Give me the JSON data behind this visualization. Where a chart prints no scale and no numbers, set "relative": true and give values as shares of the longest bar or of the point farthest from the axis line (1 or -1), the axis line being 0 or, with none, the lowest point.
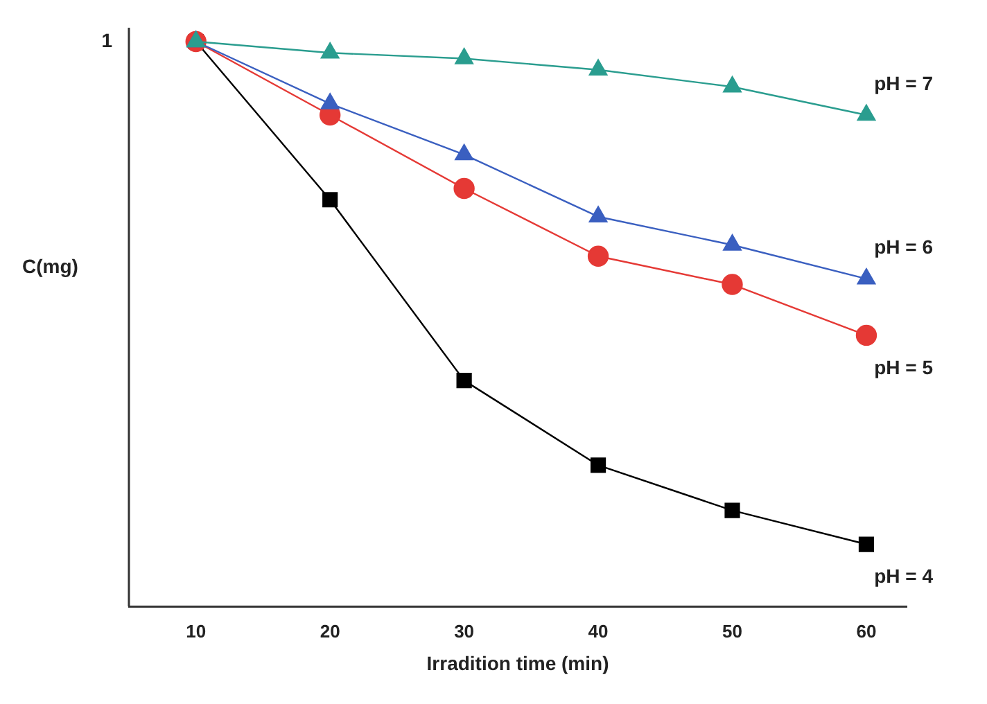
{
  "chart_data": {
    "type": "line",
    "relative": true,
    "xlabel": "Irradition time (min)",
    "ylabel": "C(mg)",
    "x": [
      10,
      20,
      30,
      40,
      50,
      60
    ],
    "xlim": [
      5,
      63
    ],
    "xticks": [
      10,
      20,
      30,
      40,
      50,
      60
    ],
    "annotations": [
      "1"
    ],
    "series": [
      {
        "name": "pH = 7",
        "color": "#2a9d8f",
        "marker": "triangle",
        "values": [
          1,
          0.98,
          0.97,
          0.95,
          0.92,
          0.87
        ]
      },
      {
        "name": "pH = 6",
        "color": "#3a5fc0",
        "marker": "triangle",
        "values": [
          1,
          0.89,
          0.8,
          0.69,
          0.64,
          0.58
        ]
      },
      {
        "name": "pH = 5",
        "color": "#e53935",
        "marker": "circle",
        "values": [
          1,
          0.87,
          0.74,
          0.62,
          0.57,
          0.48
        ]
      },
      {
        "name": "pH = 4",
        "color": "#000000",
        "marker": "square",
        "values": [
          1,
          0.72,
          0.4,
          0.25,
          0.17,
          0.11
        ]
      }
    ],
    "grid": false,
    "legend": false,
    "line_style": "solid"
  }
}
